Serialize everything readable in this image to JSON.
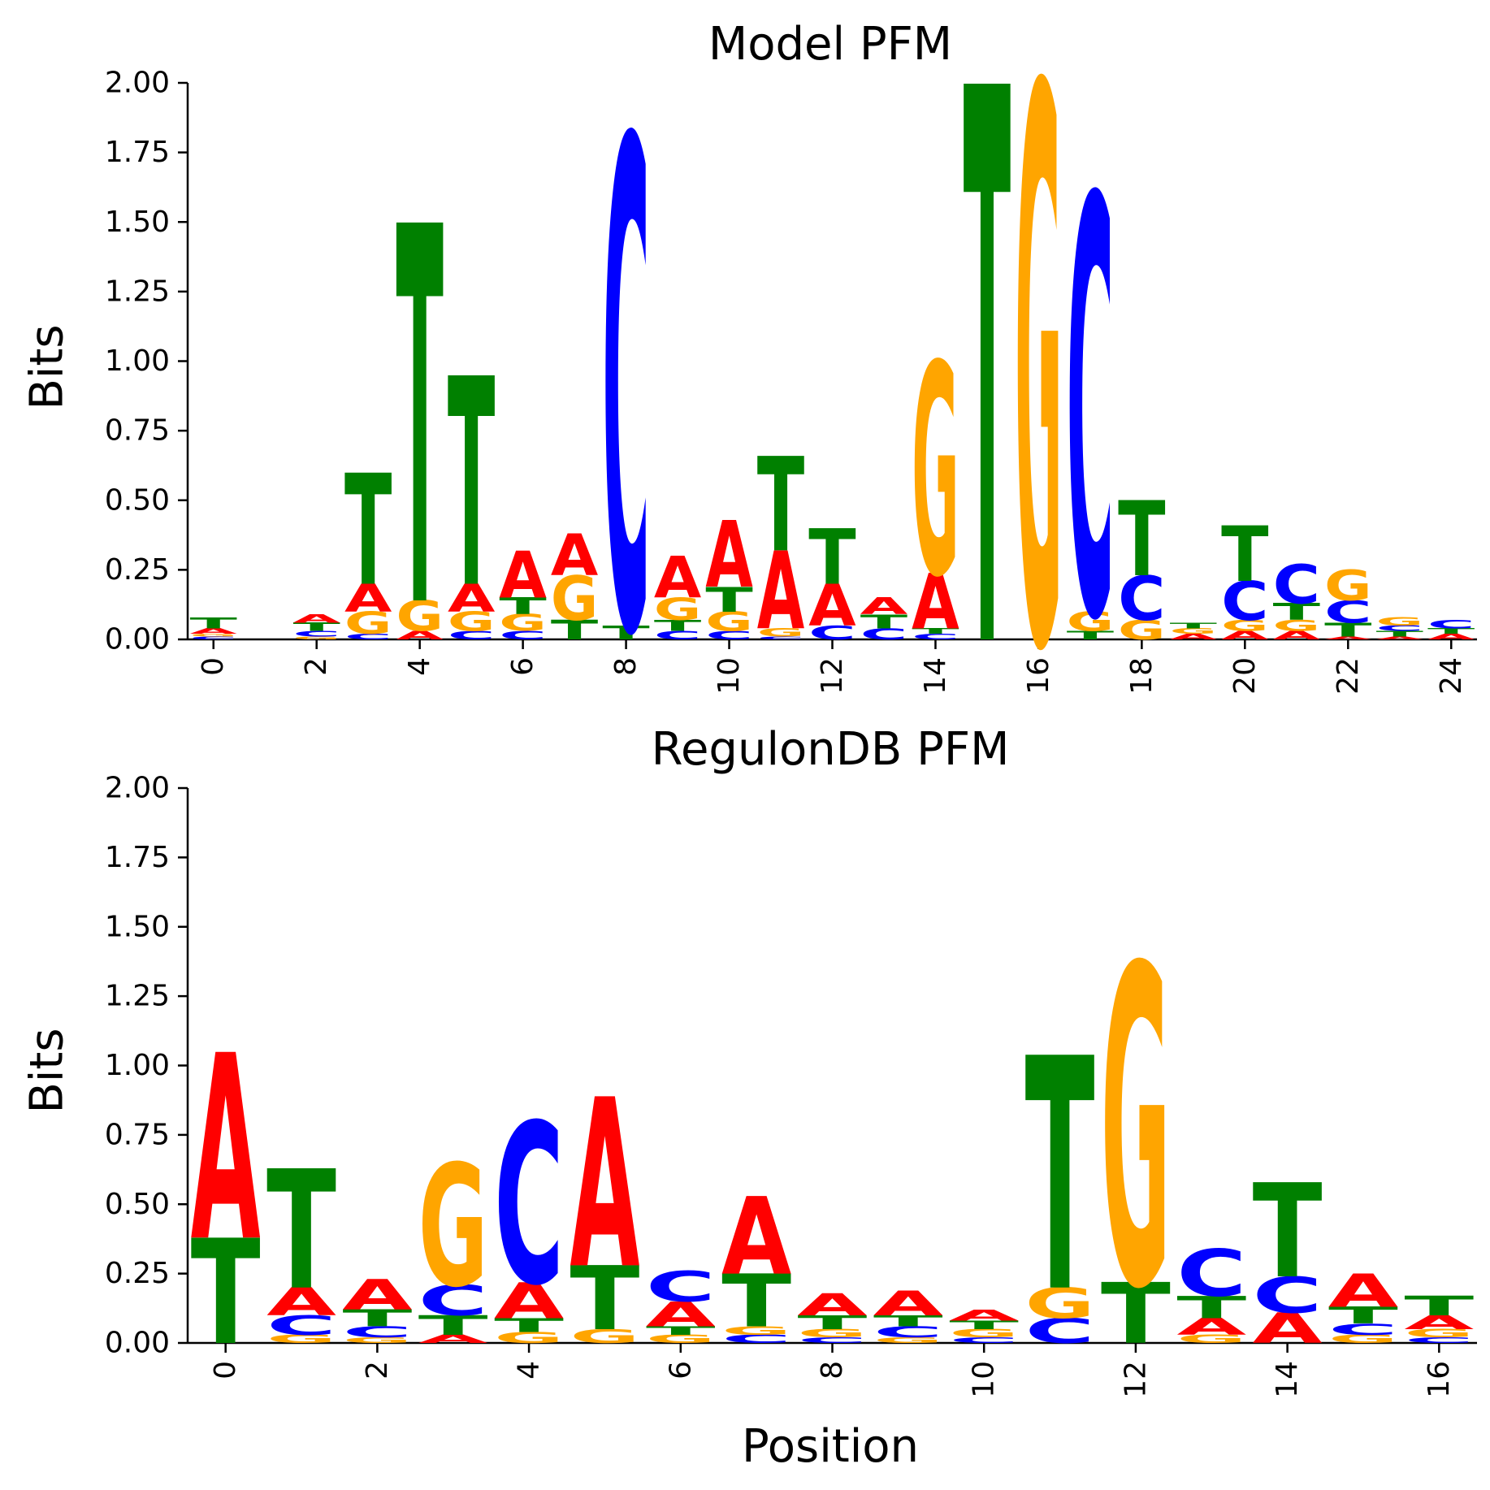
{
  "chart_data": [
    {
      "type": "sequence-logo",
      "title": "Model PFM",
      "ylabel": "Bits",
      "xlabel": "",
      "ylim": [
        0,
        2
      ],
      "yticks": [
        "0.00",
        "0.25",
        "0.50",
        "0.75",
        "1.00",
        "1.25",
        "1.50",
        "1.75",
        "2.00"
      ],
      "x_range": [
        -0.5,
        24.5
      ],
      "xticks": [
        "0",
        "2",
        "4",
        "6",
        "8",
        "10",
        "12",
        "14",
        "16",
        "18",
        "20",
        "22",
        "24"
      ],
      "positions": [
        {
          "pos": 0,
          "letters": [
            {
              "b": "C",
              "h": 0.01
            },
            {
              "b": "G",
              "h": 0.01
            },
            {
              "b": "A",
              "h": 0.02
            },
            {
              "b": "T",
              "h": 0.04
            }
          ]
        },
        {
          "pos": 1,
          "letters": []
        },
        {
          "pos": 2,
          "letters": [
            {
              "b": "G",
              "h": 0.01
            },
            {
              "b": "C",
              "h": 0.02
            },
            {
              "b": "T",
              "h": 0.03
            },
            {
              "b": "A",
              "h": 0.03
            }
          ]
        },
        {
          "pos": 3,
          "letters": [
            {
              "b": "C",
              "h": 0.02
            },
            {
              "b": "G",
              "h": 0.08
            },
            {
              "b": "A",
              "h": 0.1
            },
            {
              "b": "T",
              "h": 0.4
            }
          ]
        },
        {
          "pos": 4,
          "letters": [
            {
              "b": "A",
              "h": 0.03
            },
            {
              "b": "G",
              "h": 0.11
            },
            {
              "b": "T",
              "h": 1.36
            }
          ]
        },
        {
          "pos": 5,
          "letters": [
            {
              "b": "C",
              "h": 0.03
            },
            {
              "b": "G",
              "h": 0.07
            },
            {
              "b": "A",
              "h": 0.1
            },
            {
              "b": "T",
              "h": 0.75
            }
          ]
        },
        {
          "pos": 6,
          "letters": [
            {
              "b": "C",
              "h": 0.03
            },
            {
              "b": "G",
              "h": 0.06
            },
            {
              "b": "T",
              "h": 0.06
            },
            {
              "b": "A",
              "h": 0.17
            }
          ]
        },
        {
          "pos": 7,
          "letters": [
            {
              "b": "T",
              "h": 0.07
            },
            {
              "b": "G",
              "h": 0.16
            },
            {
              "b": "A",
              "h": 0.15
            }
          ]
        },
        {
          "pos": 8,
          "letters": [
            {
              "b": "T",
              "h": 0.05
            },
            {
              "b": "C",
              "h": 1.76
            }
          ]
        },
        {
          "pos": 9,
          "letters": [
            {
              "b": "C",
              "h": 0.03
            },
            {
              "b": "T",
              "h": 0.04
            },
            {
              "b": "G",
              "h": 0.08
            },
            {
              "b": "A",
              "h": 0.15
            }
          ]
        },
        {
          "pos": 10,
          "letters": [
            {
              "b": "C",
              "h": 0.03
            },
            {
              "b": "G",
              "h": 0.07
            },
            {
              "b": "T",
              "h": 0.09
            },
            {
              "b": "A",
              "h": 0.24
            }
          ]
        },
        {
          "pos": 11,
          "letters": [
            {
              "b": "C",
              "h": 0.01
            },
            {
              "b": "G",
              "h": 0.03
            },
            {
              "b": "A",
              "h": 0.28
            },
            {
              "b": "T",
              "h": 0.34
            }
          ]
        },
        {
          "pos": 12,
          "letters": [
            {
              "b": "C",
              "h": 0.05
            },
            {
              "b": "A",
              "h": 0.15
            },
            {
              "b": "T",
              "h": 0.2
            }
          ]
        },
        {
          "pos": 13,
          "letters": [
            {
              "b": "C",
              "h": 0.04
            },
            {
              "b": "T",
              "h": 0.05
            },
            {
              "b": "A",
              "h": 0.06
            }
          ]
        },
        {
          "pos": 14,
          "letters": [
            {
              "b": "C",
              "h": 0.02
            },
            {
              "b": "T",
              "h": 0.02
            },
            {
              "b": "A",
              "h": 0.2
            },
            {
              "b": "G",
              "h": 0.76
            }
          ]
        },
        {
          "pos": 15,
          "letters": [
            {
              "b": "T",
              "h": 2.0
            }
          ]
        },
        {
          "pos": 16,
          "letters": [
            {
              "b": "G",
              "h": 2.0
            }
          ]
        },
        {
          "pos": 17,
          "letters": [
            {
              "b": "T",
              "h": 0.03
            },
            {
              "b": "G",
              "h": 0.07
            },
            {
              "b": "C",
              "h": 1.5
            }
          ]
        },
        {
          "pos": 18,
          "letters": [
            {
              "b": "G",
              "h": 0.07
            },
            {
              "b": "C",
              "h": 0.16
            },
            {
              "b": "T",
              "h": 0.27
            }
          ]
        },
        {
          "pos": 19,
          "letters": [
            {
              "b": "A",
              "h": 0.02
            },
            {
              "b": "G",
              "h": 0.02
            },
            {
              "b": "T",
              "h": 0.02
            }
          ]
        },
        {
          "pos": 20,
          "letters": [
            {
              "b": "A",
              "h": 0.03
            },
            {
              "b": "G",
              "h": 0.04
            },
            {
              "b": "C",
              "h": 0.14
            },
            {
              "b": "T",
              "h": 0.2
            }
          ]
        },
        {
          "pos": 21,
          "letters": [
            {
              "b": "A",
              "h": 0.03
            },
            {
              "b": "G",
              "h": 0.04
            },
            {
              "b": "T",
              "h": 0.06
            },
            {
              "b": "C",
              "h": 0.14
            }
          ]
        },
        {
          "pos": 22,
          "letters": [
            {
              "b": "A",
              "h": 0.01
            },
            {
              "b": "T",
              "h": 0.05
            },
            {
              "b": "C",
              "h": 0.08
            },
            {
              "b": "G",
              "h": 0.11
            }
          ]
        },
        {
          "pos": 23,
          "letters": [
            {
              "b": "A",
              "h": 0.01
            },
            {
              "b": "T",
              "h": 0.02
            },
            {
              "b": "C",
              "h": 0.02
            },
            {
              "b": "G",
              "h": 0.03
            }
          ]
        },
        {
          "pos": 24,
          "letters": [
            {
              "b": "A",
              "h": 0.02
            },
            {
              "b": "T",
              "h": 0.02
            },
            {
              "b": "C",
              "h": 0.03
            }
          ]
        }
      ]
    },
    {
      "type": "sequence-logo",
      "title": "RegulonDB PFM",
      "ylabel": "Bits",
      "xlabel": "Position",
      "ylim": [
        0,
        2
      ],
      "yticks": [
        "0.00",
        "0.25",
        "0.50",
        "0.75",
        "1.00",
        "1.25",
        "1.50",
        "1.75",
        "2.00"
      ],
      "x_range": [
        -0.5,
        16.5
      ],
      "xticks": [
        "0",
        "2",
        "4",
        "6",
        "8",
        "10",
        "12",
        "14",
        "16"
      ],
      "positions": [
        {
          "pos": 0,
          "letters": [
            {
              "b": "T",
              "h": 0.38
            },
            {
              "b": "A",
              "h": 0.67
            }
          ]
        },
        {
          "pos": 1,
          "letters": [
            {
              "b": "G",
              "h": 0.03
            },
            {
              "b": "C",
              "h": 0.07
            },
            {
              "b": "A",
              "h": 0.1
            },
            {
              "b": "T",
              "h": 0.43
            }
          ]
        },
        {
          "pos": 2,
          "letters": [
            {
              "b": "G",
              "h": 0.02
            },
            {
              "b": "C",
              "h": 0.04
            },
            {
              "b": "T",
              "h": 0.06
            },
            {
              "b": "A",
              "h": 0.11
            }
          ]
        },
        {
          "pos": 3,
          "letters": [
            {
              "b": "A",
              "h": 0.03
            },
            {
              "b": "T",
              "h": 0.07
            },
            {
              "b": "C",
              "h": 0.11
            },
            {
              "b": "G",
              "h": 0.44
            }
          ]
        },
        {
          "pos": 4,
          "letters": [
            {
              "b": "G",
              "h": 0.04
            },
            {
              "b": "T",
              "h": 0.05
            },
            {
              "b": "A",
              "h": 0.13
            },
            {
              "b": "C",
              "h": 0.58
            }
          ]
        },
        {
          "pos": 5,
          "letters": [
            {
              "b": "G",
              "h": 0.05
            },
            {
              "b": "T",
              "h": 0.23
            },
            {
              "b": "A",
              "h": 0.61
            }
          ]
        },
        {
          "pos": 6,
          "letters": [
            {
              "b": "G",
              "h": 0.03
            },
            {
              "b": "T",
              "h": 0.03
            },
            {
              "b": "A",
              "h": 0.09
            },
            {
              "b": "C",
              "h": 0.11
            }
          ]
        },
        {
          "pos": 7,
          "letters": [
            {
              "b": "C",
              "h": 0.03
            },
            {
              "b": "G",
              "h": 0.03
            },
            {
              "b": "T",
              "h": 0.19
            },
            {
              "b": "A",
              "h": 0.28
            }
          ]
        },
        {
          "pos": 8,
          "letters": [
            {
              "b": "C",
              "h": 0.02
            },
            {
              "b": "G",
              "h": 0.03
            },
            {
              "b": "T",
              "h": 0.05
            },
            {
              "b": "A",
              "h": 0.08
            }
          ]
        },
        {
          "pos": 9,
          "letters": [
            {
              "b": "G",
              "h": 0.02
            },
            {
              "b": "C",
              "h": 0.04
            },
            {
              "b": "T",
              "h": 0.04
            },
            {
              "b": "A",
              "h": 0.09
            }
          ]
        },
        {
          "pos": 10,
          "letters": [
            {
              "b": "C",
              "h": 0.02
            },
            {
              "b": "G",
              "h": 0.03
            },
            {
              "b": "T",
              "h": 0.03
            },
            {
              "b": "A",
              "h": 0.04
            }
          ]
        },
        {
          "pos": 11,
          "letters": [
            {
              "b": "C",
              "h": 0.09
            },
            {
              "b": "G",
              "h": 0.11
            },
            {
              "b": "T",
              "h": 0.84
            }
          ]
        },
        {
          "pos": 12,
          "letters": [
            {
              "b": "T",
              "h": 0.22
            },
            {
              "b": "G",
              "h": 1.15
            }
          ]
        },
        {
          "pos": 13,
          "letters": [
            {
              "b": "G",
              "h": 0.03
            },
            {
              "b": "A",
              "h": 0.06
            },
            {
              "b": "T",
              "h": 0.08
            },
            {
              "b": "C",
              "h": 0.17
            }
          ]
        },
        {
          "pos": 14,
          "letters": [
            {
              "b": "A",
              "h": 0.11
            },
            {
              "b": "C",
              "h": 0.13
            },
            {
              "b": "T",
              "h": 0.34
            }
          ]
        },
        {
          "pos": 15,
          "letters": [
            {
              "b": "G",
              "h": 0.03
            },
            {
              "b": "C",
              "h": 0.04
            },
            {
              "b": "T",
              "h": 0.06
            },
            {
              "b": "A",
              "h": 0.12
            }
          ]
        },
        {
          "pos": 16,
          "letters": [
            {
              "b": "C",
              "h": 0.02
            },
            {
              "b": "G",
              "h": 0.03
            },
            {
              "b": "A",
              "h": 0.05
            },
            {
              "b": "T",
              "h": 0.07
            }
          ]
        }
      ]
    }
  ],
  "colors": {
    "A": "#ff0000",
    "C": "#0000ff",
    "G": "#ffa500",
    "T": "#008000"
  }
}
